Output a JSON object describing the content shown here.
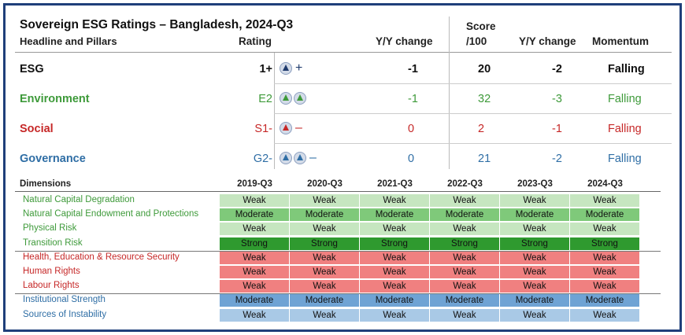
{
  "title": "Sovereign ESG Ratings – Bangladesh, 2024-Q3",
  "headers": {
    "headline": "Headline and Pillars",
    "rating": "Rating",
    "yy1": "Y/Y change",
    "score_top": "Score",
    "score_bottom": "/100",
    "yy2": "Y/Y change",
    "momentum": "Momentum"
  },
  "pillars": [
    {
      "name": "ESG",
      "rating": "1+",
      "tris": 1,
      "sign": "+",
      "yy": "-1",
      "score": "20",
      "score_yy": "-2",
      "momentum": "Falling",
      "color": "#111111",
      "tri_color": "#1f3b6d"
    },
    {
      "name": "Environment",
      "rating": "E2",
      "tris": 2,
      "sign": "",
      "yy": "-1",
      "score": "32",
      "score_yy": "-3",
      "momentum": "Falling",
      "color": "#3e9a3a",
      "tri_color": "#3e9a3a"
    },
    {
      "name": "Social",
      "rating": "S1-",
      "tris": 1,
      "sign": "–",
      "yy": "0",
      "score": "2",
      "score_yy": "-1",
      "momentum": "Falling",
      "color": "#c62828",
      "tri_color": "#c62828"
    },
    {
      "name": "Governance",
      "rating": "G2-",
      "tris": 2,
      "sign": "–",
      "yy": "0",
      "score": "21",
      "score_yy": "-2",
      "momentum": "Falling",
      "color": "#2f6ea5",
      "tri_color": "#2f6ea5"
    }
  ],
  "dimensions_header": "Dimensions",
  "periods": [
    "2019-Q3",
    "2020-Q3",
    "2021-Q3",
    "2022-Q3",
    "2023-Q3",
    "2024-Q3"
  ],
  "dimensions": [
    {
      "name": "Natural Capital Degradation",
      "group": "env",
      "values": [
        "Weak",
        "Weak",
        "Weak",
        "Weak",
        "Weak",
        "Weak"
      ]
    },
    {
      "name": "Natural Capital Endowment and Protections",
      "group": "env",
      "values": [
        "Moderate",
        "Moderate",
        "Moderate",
        "Moderate",
        "Moderate",
        "Moderate"
      ]
    },
    {
      "name": "Physical Risk",
      "group": "env",
      "values": [
        "Weak",
        "Weak",
        "Weak",
        "Weak",
        "Weak",
        "Weak"
      ]
    },
    {
      "name": "Transition Risk",
      "group": "env",
      "values": [
        "Strong",
        "Strong",
        "Strong",
        "Strong",
        "Strong",
        "Strong"
      ]
    },
    {
      "name": "Health, Education & Resource Security",
      "group": "soc",
      "values": [
        "Weak",
        "Weak",
        "Weak",
        "Weak",
        "Weak",
        "Weak"
      ]
    },
    {
      "name": "Human Rights",
      "group": "soc",
      "values": [
        "Weak",
        "Weak",
        "Weak",
        "Weak",
        "Weak",
        "Weak"
      ]
    },
    {
      "name": "Labour Rights",
      "group": "soc",
      "values": [
        "Weak",
        "Weak",
        "Weak",
        "Weak",
        "Weak",
        "Weak"
      ]
    },
    {
      "name": "Institutional Strength",
      "group": "gov",
      "values": [
        "Moderate",
        "Moderate",
        "Moderate",
        "Moderate",
        "Moderate",
        "Moderate"
      ]
    },
    {
      "name": "Sources of Instability",
      "group": "gov",
      "values": [
        "Weak",
        "Weak",
        "Weak",
        "Weak",
        "Weak",
        "Weak"
      ]
    }
  ],
  "colors": {
    "env_label": "#3e9a3a",
    "soc_label": "#c62828",
    "gov_label": "#2f6ea5",
    "env_Weak": "#c6e6c0",
    "env_Moderate": "#7fc97a",
    "env_Strong": "#2f9a2f",
    "soc_Weak": "#f08080",
    "gov_Moderate": "#6fa3d4",
    "gov_Weak": "#a9c9e6"
  }
}
